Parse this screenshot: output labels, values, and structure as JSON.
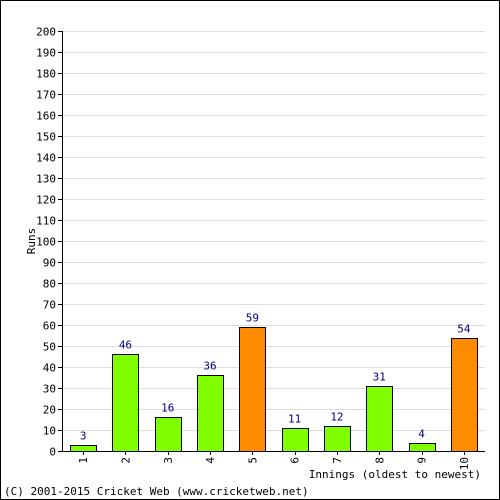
{
  "chart_data": {
    "type": "bar",
    "categories": [
      "1",
      "2",
      "3",
      "4",
      "5",
      "6",
      "7",
      "8",
      "9",
      "10"
    ],
    "values": [
      3,
      46,
      16,
      36,
      59,
      11,
      12,
      31,
      4,
      54
    ],
    "bar_colors": [
      "#80ff00",
      "#80ff00",
      "#80ff00",
      "#80ff00",
      "#ff8c00",
      "#80ff00",
      "#80ff00",
      "#80ff00",
      "#80ff00",
      "#ff8c00"
    ],
    "data_labels": [
      "3",
      "46",
      "16",
      "36",
      "59",
      "11",
      "12",
      "31",
      "4",
      "54"
    ],
    "ylabel": "Runs",
    "xlabel": "Innings (oldest to newest)",
    "ylim": [
      0,
      200
    ],
    "yticks": [
      0,
      10,
      20,
      30,
      40,
      50,
      60,
      70,
      80,
      90,
      100,
      110,
      120,
      130,
      140,
      150,
      160,
      170,
      180,
      190,
      200
    ],
    "grid": true,
    "label_color": "#000080",
    "grid_color": "#dddddd"
  },
  "credit": "(C) 2001-2015 Cricket Web (www.cricketweb.net)"
}
